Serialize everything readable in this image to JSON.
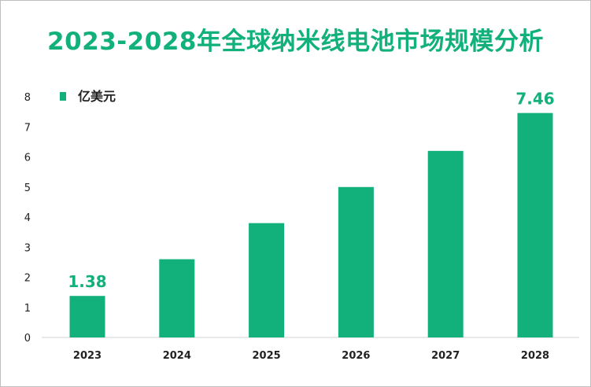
{
  "chart_data": {
    "type": "bar",
    "title": "2023-2028年全球纳米线电池市场规模分析",
    "categories": [
      "2023",
      "2024",
      "2025",
      "2026",
      "2027",
      "2028"
    ],
    "series": [
      {
        "name": "亿美元",
        "values": [
          1.38,
          2.6,
          3.8,
          5.0,
          6.2,
          7.46
        ]
      }
    ],
    "data_labels": {
      "2023": "1.38",
      "2028": "7.46"
    },
    "yticks": [
      0,
      1,
      2,
      3,
      4,
      5,
      6,
      7,
      8
    ],
    "ylim": [
      0,
      8
    ],
    "xlabel": "",
    "ylabel": "",
    "grid": false,
    "legend": "top-left",
    "color": "#12b07a"
  }
}
